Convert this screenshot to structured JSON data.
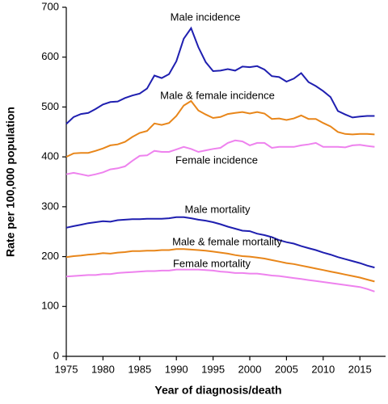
{
  "chart_data": {
    "type": "line",
    "xlabel": "Year of diagnosis/death",
    "ylabel": "Rate per 100,000 population",
    "x": [
      1975,
      1976,
      1977,
      1978,
      1979,
      1980,
      1981,
      1982,
      1983,
      1984,
      1985,
      1986,
      1987,
      1988,
      1989,
      1990,
      1991,
      1992,
      1993,
      1994,
      1995,
      1996,
      1997,
      1998,
      1999,
      2000,
      2001,
      2002,
      2003,
      2004,
      2005,
      2006,
      2007,
      2008,
      2009,
      2010,
      2011,
      2012,
      2013,
      2014,
      2015,
      2016,
      2017
    ],
    "xlim": [
      1975,
      2018.5
    ],
    "xticks": [
      1975,
      1980,
      1985,
      1990,
      1995,
      2000,
      2005,
      2010,
      2015
    ],
    "ylim": [
      0,
      700
    ],
    "yticks": [
      0,
      100,
      200,
      300,
      400,
      500,
      600,
      700
    ],
    "series": [
      {
        "name": "Male incidence",
        "color": "#1f1fb0",
        "values": [
          466,
          480,
          486,
          488,
          496,
          505,
          510,
          511,
          518,
          523,
          527,
          537,
          563,
          558,
          566,
          592,
          637,
          658,
          620,
          590,
          572,
          573,
          576,
          573,
          581,
          580,
          582,
          575,
          562,
          560,
          551,
          557,
          568,
          550,
          542,
          532,
          520,
          492,
          485,
          479,
          481,
          482,
          482
        ]
      },
      {
        "name": "Male & female incidence",
        "color": "#e8861a",
        "values": [
          400,
          407,
          408,
          408,
          412,
          417,
          423,
          425,
          430,
          440,
          448,
          452,
          467,
          464,
          468,
          482,
          503,
          512,
          493,
          485,
          478,
          480,
          486,
          488,
          490,
          487,
          490,
          487,
          476,
          477,
          474,
          477,
          483,
          476,
          476,
          468,
          461,
          450,
          446,
          445,
          446,
          446,
          445
        ]
      },
      {
        "name": "Female incidence",
        "color": "#ee82ee",
        "values": [
          365,
          368,
          365,
          362,
          365,
          369,
          375,
          377,
          381,
          392,
          402,
          403,
          412,
          410,
          410,
          415,
          420,
          416,
          410,
          413,
          416,
          418,
          428,
          433,
          431,
          423,
          428,
          428,
          418,
          420,
          420,
          420,
          423,
          425,
          428,
          420,
          420,
          420,
          419,
          423,
          424,
          422,
          420
        ]
      },
      {
        "name": "Male mortality",
        "color": "#1f1fb0",
        "values": [
          258,
          261,
          264,
          267,
          269,
          271,
          270,
          273,
          274,
          275,
          275,
          276,
          276,
          276,
          277,
          279,
          279,
          277,
          274,
          272,
          269,
          265,
          260,
          256,
          252,
          251,
          246,
          243,
          239,
          233,
          229,
          226,
          221,
          217,
          213,
          208,
          204,
          199,
          195,
          191,
          187,
          182,
          178
        ]
      },
      {
        "name": "Male & female mortality",
        "color": "#e8861a",
        "values": [
          199,
          201,
          202,
          204,
          205,
          207,
          206,
          208,
          209,
          211,
          211,
          212,
          212,
          213,
          213,
          215,
          215,
          214,
          213,
          212,
          210,
          208,
          206,
          203,
          201,
          200,
          198,
          196,
          193,
          190,
          187,
          185,
          182,
          179,
          176,
          173,
          170,
          167,
          164,
          161,
          158,
          154,
          150
        ]
      },
      {
        "name": "Female mortality",
        "color": "#ee82ee",
        "values": [
          160,
          161,
          162,
          163,
          163,
          165,
          165,
          167,
          168,
          169,
          170,
          171,
          171,
          172,
          172,
          174,
          174,
          174,
          174,
          173,
          172,
          170,
          169,
          167,
          167,
          166,
          166,
          164,
          162,
          161,
          159,
          157,
          155,
          153,
          151,
          149,
          147,
          145,
          143,
          141,
          139,
          135,
          130
        ]
      }
    ]
  }
}
